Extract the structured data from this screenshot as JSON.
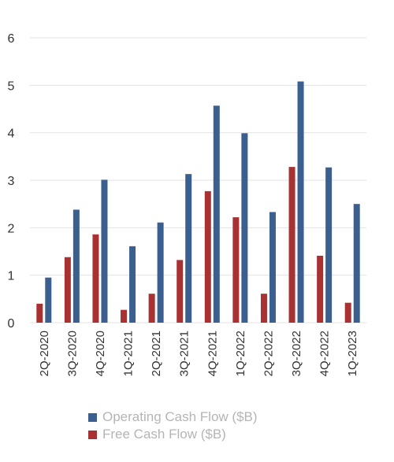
{
  "chart_data": {
    "type": "bar",
    "title": "",
    "xlabel": "",
    "ylabel": "",
    "ylim": [
      0,
      6
    ],
    "yticks": [
      0,
      1,
      2,
      3,
      4,
      5,
      6
    ],
    "grid": true,
    "legend_position": "bottom",
    "categories": [
      "2Q-2020",
      "3Q-2020",
      "4Q-2020",
      "1Q-2021",
      "2Q-2021",
      "3Q-2021",
      "4Q-2021",
      "1Q-2022",
      "2Q-2022",
      "3Q-2022",
      "4Q-2022",
      "1Q-2023"
    ],
    "series": [
      {
        "name": "Free Cash Flow ($B)",
        "color": "#a83232",
        "values": [
          0.4,
          1.38,
          1.86,
          0.27,
          0.61,
          1.32,
          2.77,
          2.22,
          0.61,
          3.28,
          1.41,
          0.42
        ]
      },
      {
        "name": "Operating Cash Flow ($B)",
        "color": "#3b5f8e",
        "values": [
          0.95,
          2.38,
          3.01,
          1.61,
          2.11,
          3.13,
          4.57,
          3.99,
          2.33,
          5.08,
          3.27,
          2.5
        ]
      }
    ]
  },
  "legend": [
    {
      "label": "Operating Cash Flow ($B)",
      "color": "#3b5f8e"
    },
    {
      "label": "Free Cash Flow ($B)",
      "color": "#a83232"
    }
  ]
}
